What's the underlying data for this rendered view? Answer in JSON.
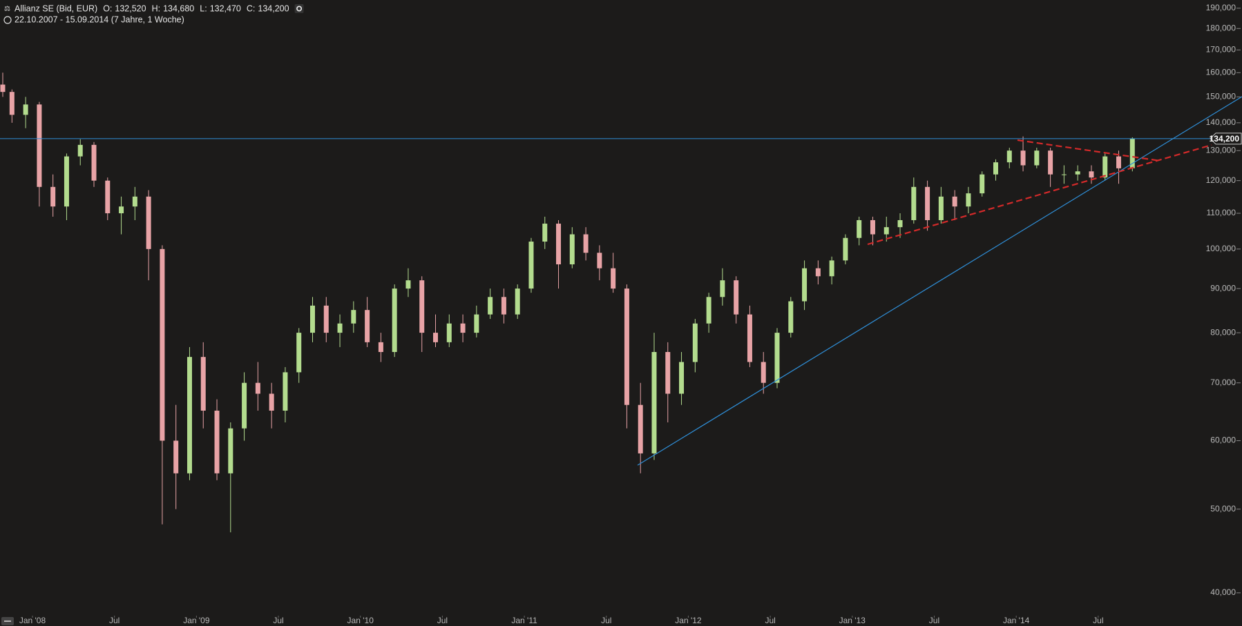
{
  "chart_data": {
    "type": "candlestick",
    "title": "Allianz SE (Bid, EUR)",
    "ohlc_labels": [
      {
        "name": "O:",
        "value": "132,520"
      },
      {
        "name": "H:",
        "value": "134,680"
      },
      {
        "name": "L:",
        "value": "132,470"
      },
      {
        "name": "C:",
        "value": "134,200"
      }
    ],
    "subtitle": "22.10.2007 - 15.09.2014 (7 Jahre, 1 Woche)",
    "x": [
      "2007-10",
      "2007-11",
      "2007-12",
      "2008-01",
      "2008-02",
      "2008-03",
      "2008-04",
      "2008-05",
      "2008-06",
      "2008-07",
      "2008-08",
      "2008-09",
      "2008-10",
      "2008-11",
      "2008-12",
      "2009-01",
      "2009-02",
      "2009-03",
      "2009-04",
      "2009-05",
      "2009-06",
      "2009-07",
      "2009-08",
      "2009-09",
      "2009-10",
      "2009-11",
      "2009-12",
      "2010-01",
      "2010-02",
      "2010-03",
      "2010-04",
      "2010-05",
      "2010-06",
      "2010-07",
      "2010-08",
      "2010-09",
      "2010-10",
      "2010-11",
      "2010-12",
      "2011-01",
      "2011-02",
      "2011-03",
      "2011-04",
      "2011-05",
      "2011-06",
      "2011-07",
      "2011-08",
      "2011-09",
      "2011-10",
      "2011-11",
      "2011-12",
      "2012-01",
      "2012-02",
      "2012-03",
      "2012-04",
      "2012-05",
      "2012-06",
      "2012-07",
      "2012-08",
      "2012-09",
      "2012-10",
      "2012-11",
      "2012-12",
      "2013-01",
      "2013-02",
      "2013-03",
      "2013-04",
      "2013-05",
      "2013-06",
      "2013-07",
      "2013-08",
      "2013-09",
      "2013-10",
      "2013-11",
      "2013-12",
      "2014-01",
      "2014-02",
      "2014-03",
      "2014-04",
      "2014-05",
      "2014-06",
      "2014-07",
      "2014-08",
      "2014-09"
    ],
    "open": [
      155,
      152,
      143,
      147,
      118,
      112,
      128,
      132,
      120,
      110,
      112,
      115,
      100,
      60,
      55,
      75,
      65,
      55,
      62,
      70,
      68,
      65,
      72,
      80,
      86,
      80,
      82,
      85,
      78,
      76,
      90,
      92,
      80,
      78,
      82,
      80,
      84,
      88,
      84,
      90,
      102,
      107,
      96,
      104,
      99,
      95,
      90,
      66,
      58,
      76,
      68,
      74,
      82,
      88,
      92,
      84,
      74,
      70,
      80,
      87,
      95,
      93,
      97,
      103,
      108,
      104,
      106,
      108,
      118,
      108,
      115,
      112,
      116,
      122,
      126,
      130,
      125,
      130,
      122,
      122,
      123,
      121,
      128,
      124
    ],
    "high": [
      160,
      153,
      150,
      148,
      122,
      129,
      134,
      133,
      121,
      115,
      118,
      117,
      101,
      66,
      77,
      78,
      67,
      63,
      72,
      74,
      70,
      73,
      81,
      88,
      88,
      84,
      87,
      88,
      80,
      91,
      95,
      93,
      84,
      84,
      84,
      86,
      90,
      90,
      91,
      103,
      109,
      108,
      106,
      106,
      101,
      99,
      91,
      70,
      80,
      78,
      76,
      83,
      89,
      95,
      93,
      86,
      76,
      81,
      88,
      97,
      97,
      98,
      104,
      109,
      109,
      109,
      110,
      121,
      120,
      118,
      117,
      118,
      123,
      127,
      131,
      135,
      131,
      131,
      125,
      125,
      125,
      129,
      130,
      134.68
    ],
    "low": [
      150,
      140,
      138,
      112,
      109,
      108,
      125,
      118,
      108,
      104,
      108,
      92,
      48,
      50,
      54,
      62,
      54,
      47,
      60,
      65,
      62,
      63,
      70,
      78,
      78,
      77,
      80,
      77,
      74,
      75,
      88,
      76,
      77,
      77,
      78,
      79,
      83,
      82,
      83,
      89,
      100,
      90,
      95,
      97,
      92,
      89,
      62,
      55,
      57,
      63,
      66,
      72,
      80,
      86,
      82,
      73,
      68,
      69,
      79,
      85,
      91,
      91,
      96,
      101,
      101,
      102,
      103,
      107,
      105,
      107,
      108,
      110,
      115,
      120,
      124,
      123,
      124,
      118,
      119,
      120,
      119,
      120,
      119,
      123
    ],
    "close": [
      152,
      143,
      147,
      118,
      112,
      128,
      132,
      120,
      110,
      112,
      115,
      100,
      60,
      55,
      75,
      65,
      55,
      62,
      70,
      68,
      65,
      72,
      80,
      86,
      80,
      82,
      85,
      78,
      76,
      90,
      92,
      80,
      78,
      82,
      80,
      84,
      88,
      84,
      90,
      102,
      107,
      96,
      104,
      99,
      95,
      90,
      66,
      58,
      76,
      68,
      74,
      82,
      88,
      92,
      84,
      74,
      70,
      80,
      87,
      95,
      93,
      97,
      103,
      108,
      104,
      106,
      108,
      118,
      108,
      115,
      112,
      116,
      122,
      126,
      130,
      125,
      130,
      122,
      122,
      123,
      121,
      128,
      124,
      134.2
    ],
    "up_color": "#b3dc8e",
    "down_color": "#e8a3a6",
    "last_price": {
      "value": 134.2,
      "label": "134,200"
    },
    "ylim": [
      37.5,
      194.2
    ],
    "log_y": true,
    "yticks": [
      {
        "value": 40,
        "label": "40,000"
      },
      {
        "value": 50,
        "label": "50,000"
      },
      {
        "value": 60,
        "label": "60,000"
      },
      {
        "value": 70,
        "label": "70,000"
      },
      {
        "value": 80,
        "label": "80,000"
      },
      {
        "value": 90,
        "label": "90,000"
      },
      {
        "value": 100,
        "label": "100,000"
      },
      {
        "value": 110,
        "label": "110,000"
      },
      {
        "value": 120,
        "label": "120,000"
      },
      {
        "value": 130,
        "label": "130,000"
      },
      {
        "value": 140,
        "label": "140,000"
      },
      {
        "value": 150,
        "label": "150,000"
      },
      {
        "value": 160,
        "label": "160,000"
      },
      {
        "value": 170,
        "label": "170,000"
      },
      {
        "value": 180,
        "label": "180,000"
      },
      {
        "value": 190,
        "label": "190,000"
      }
    ],
    "xticks": [
      {
        "value": "2008-01",
        "label": "Jan '08"
      },
      {
        "value": "2008-07",
        "label": "Jul"
      },
      {
        "value": "2009-01",
        "label": "Jan '09"
      },
      {
        "value": "2009-07",
        "label": "Jul"
      },
      {
        "value": "2010-01",
        "label": "Jan '10"
      },
      {
        "value": "2010-07",
        "label": "Jul"
      },
      {
        "value": "2011-01",
        "label": "Jan '11"
      },
      {
        "value": "2011-07",
        "label": "Jul"
      },
      {
        "value": "2012-01",
        "label": "Jan '12"
      },
      {
        "value": "2012-07",
        "label": "Jul"
      },
      {
        "value": "2013-01",
        "label": "Jan '13"
      },
      {
        "value": "2013-07",
        "label": "Jul"
      },
      {
        "value": "2014-01",
        "label": "Jan '14"
      },
      {
        "value": "2014-07",
        "label": "Jul"
      }
    ]
  }
}
